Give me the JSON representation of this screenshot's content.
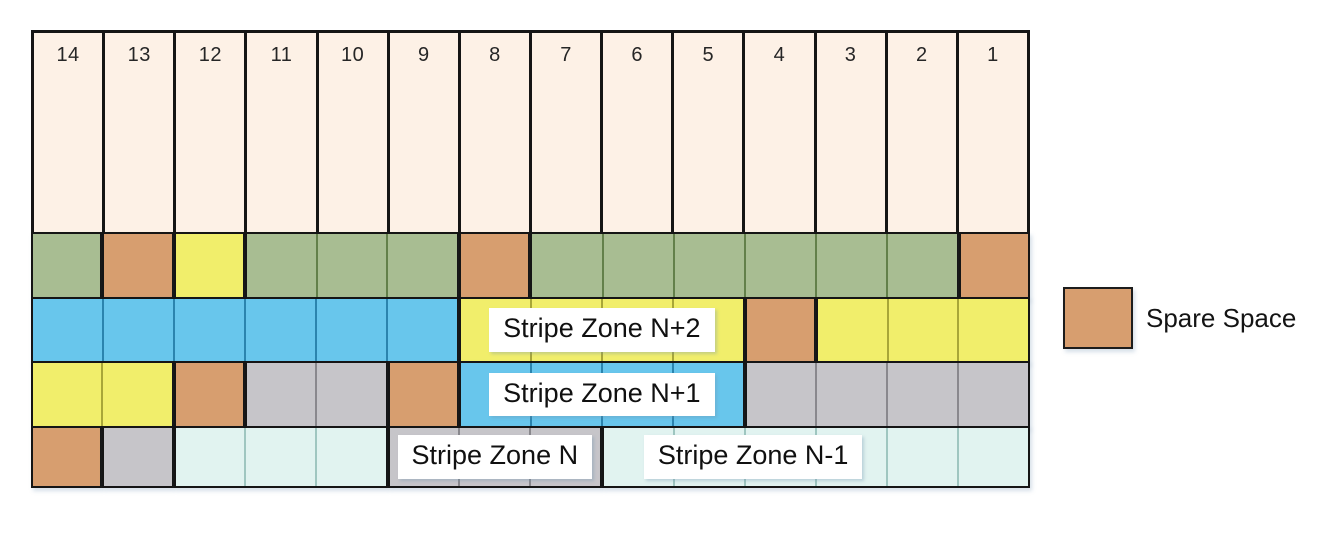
{
  "columns": [
    "14",
    "13",
    "12",
    "11",
    "10",
    "9",
    "8",
    "7",
    "6",
    "5",
    "4",
    "3",
    "2",
    "1"
  ],
  "labels": {
    "n_plus_2": "Stripe Zone N+2",
    "n_plus_1": "Stripe Zone N+1",
    "n": "Stripe Zone N",
    "n_minus_1": "Stripe Zone N-1"
  },
  "legend": {
    "label": "Spare Space",
    "swatch_color": "#d79e6f"
  },
  "palette": {
    "header": {
      "fill": "#fdf1e6",
      "sep": "#151515"
    },
    "green": {
      "fill": "#a8bd92",
      "sep": "#63804a"
    },
    "spare": {
      "fill": "#d79e6f",
      "sep": "#a9713f"
    },
    "yellow": {
      "fill": "#f1ee6b",
      "sep": "#a8a638"
    },
    "blue": {
      "fill": "#68c6ec",
      "sep": "#2b84ae"
    },
    "gray": {
      "fill": "#c6c5c9",
      "sep": "#89888d"
    },
    "cyan": {
      "fill": "#e1f3f0",
      "sep": "#9fc6c0"
    }
  },
  "grid": {
    "rows": [
      {
        "name": "row-green",
        "groups": [
          {
            "color": "green",
            "span": 1
          },
          {
            "color": "spare",
            "span": 1
          },
          {
            "color": "yellow",
            "span": 1
          },
          {
            "color": "green",
            "span": 3
          },
          {
            "color": "spare",
            "span": 1
          },
          {
            "color": "green",
            "span": 6
          },
          {
            "color": "spare",
            "span": 1
          }
        ]
      },
      {
        "name": "row-zone-n2",
        "groups": [
          {
            "color": "blue",
            "span": 6
          },
          {
            "color": "yellow",
            "span": 4,
            "label": "n_plus_2"
          },
          {
            "color": "spare",
            "span": 1
          },
          {
            "color": "yellow",
            "span": 3
          }
        ]
      },
      {
        "name": "row-zone-n1",
        "groups": [
          {
            "color": "yellow",
            "span": 2
          },
          {
            "color": "spare",
            "span": 1
          },
          {
            "color": "gray",
            "span": 2
          },
          {
            "color": "spare",
            "span": 1
          },
          {
            "color": "blue",
            "span": 4,
            "label": "n_plus_1"
          },
          {
            "color": "gray",
            "span": 4
          }
        ]
      },
      {
        "name": "row-zone-n",
        "groups": [
          {
            "color": "spare",
            "span": 1
          },
          {
            "color": "gray",
            "span": 1
          },
          {
            "color": "cyan",
            "span": 3
          },
          {
            "color": "gray",
            "span": 3,
            "label": "n"
          },
          {
            "color": "cyan",
            "span": 6,
            "label": "n_minus_1",
            "label_align": "left"
          }
        ]
      }
    ]
  }
}
